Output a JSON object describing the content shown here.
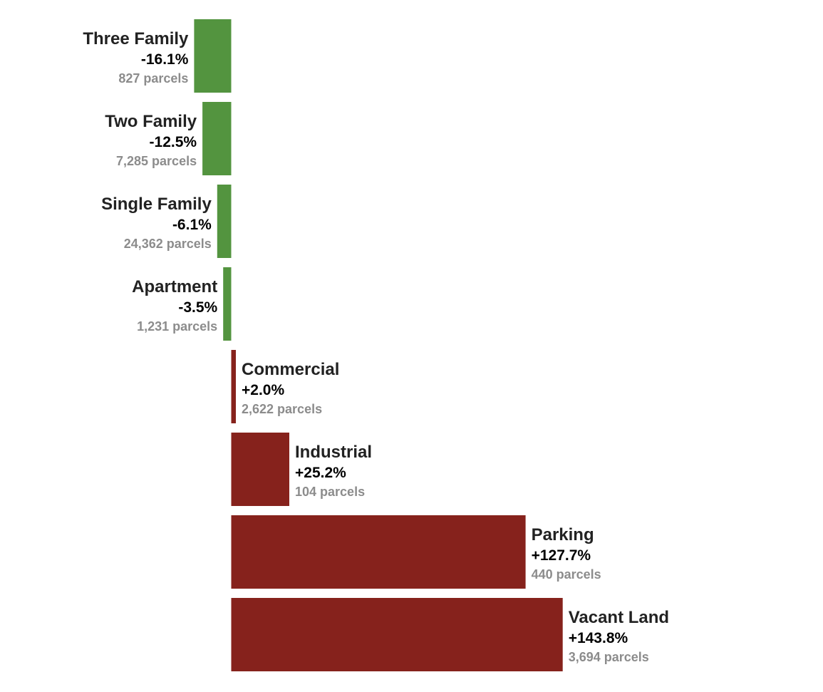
{
  "chart_data": {
    "type": "bar",
    "orientation": "horizontal",
    "categories": [
      "Three Family",
      "Two Family",
      "Single Family",
      "Apartment",
      "Commercial",
      "Industrial",
      "Parking",
      "Vacant Land"
    ],
    "values": [
      -16.1,
      -12.5,
      -6.1,
      -3.5,
      2.0,
      25.2,
      127.7,
      143.8
    ],
    "value_labels": [
      "-16.1%",
      "-12.5%",
      "-6.1%",
      "-3.5%",
      "+2.0%",
      "+25.2%",
      "+127.7%",
      "+143.8%"
    ],
    "parcel_labels": [
      "827 parcels",
      "7,285 parcels",
      "24,362 parcels",
      "1,231 parcels",
      "2,622 parcels",
      "104 parcels",
      "440 parcels",
      "3,694 parcels"
    ],
    "colors": {
      "negative": "#53943f",
      "positive": "#86221c"
    },
    "grid": false,
    "legend": "none"
  }
}
